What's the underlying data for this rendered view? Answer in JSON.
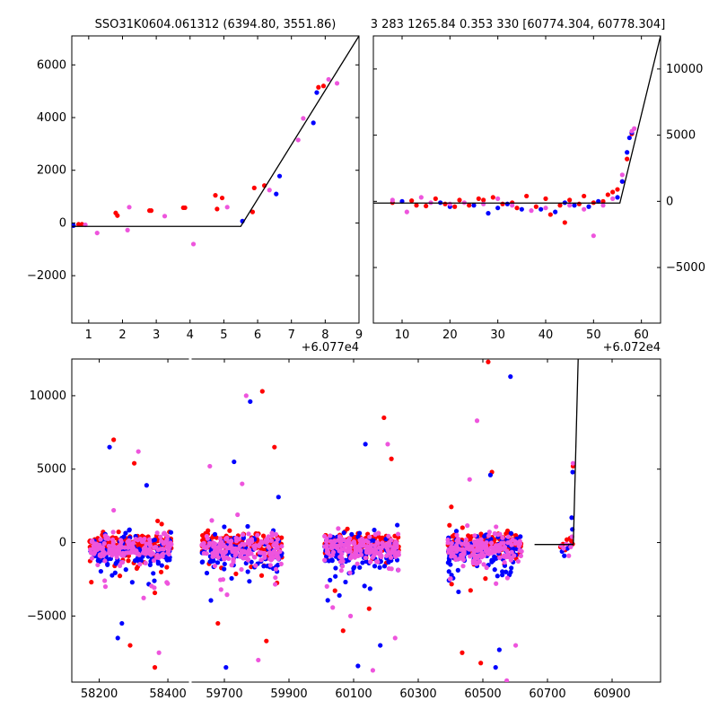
{
  "figure": {
    "title_left": "SSO31K0604.061312 (6394.80, 3551.86)",
    "title_right": "3 283 1265.84 0.353 330 [60774.304, 60778.304]"
  },
  "colors": {
    "series_a": "#ff0000",
    "series_b": "#0000ff",
    "series_c": "#ee55dd",
    "model": "#000000"
  },
  "chart_data": [
    {
      "type": "scatter",
      "panel": "top-left",
      "xlim": [
        0.5,
        9.0
      ],
      "ylim": [
        -3800,
        7100
      ],
      "x_offset_label": "+6.077e4",
      "xticks": [
        1,
        2,
        3,
        4,
        5,
        6,
        7,
        8,
        9
      ],
      "yticks": [
        -2000,
        0,
        2000,
        4000,
        6000
      ],
      "ytick_side": "left",
      "model": {
        "x": [
          0.5,
          5.5,
          9.0
        ],
        "y": [
          -130,
          -130,
          7100
        ]
      },
      "series": [
        {
          "color": "#ff0000",
          "points": [
            [
              0.7,
              -50
            ],
            [
              0.8,
              -50
            ],
            [
              1.8,
              380
            ],
            [
              1.85,
              280
            ],
            [
              2.8,
              470
            ],
            [
              2.85,
              470
            ],
            [
              3.8,
              580
            ],
            [
              3.85,
              580
            ],
            [
              4.75,
              1050
            ],
            [
              4.8,
              530
            ],
            [
              4.95,
              950
            ],
            [
              5.85,
              420
            ],
            [
              5.9,
              1330
            ],
            [
              6.2,
              1420
            ],
            [
              7.8,
              5150
            ],
            [
              7.95,
              5200
            ]
          ]
        },
        {
          "color": "#0000ff",
          "points": [
            [
              0.55,
              -100
            ],
            [
              5.55,
              70
            ],
            [
              6.55,
              1100
            ],
            [
              6.65,
              1780
            ],
            [
              7.65,
              3800
            ],
            [
              7.75,
              4950
            ]
          ]
        },
        {
          "color": "#ee55dd",
          "points": [
            [
              0.9,
              -70
            ],
            [
              1.25,
              -380
            ],
            [
              2.15,
              -270
            ],
            [
              2.2,
              600
            ],
            [
              3.25,
              260
            ],
            [
              4.1,
              -800
            ],
            [
              5.1,
              600
            ],
            [
              6.35,
              1250
            ],
            [
              7.2,
              3150
            ],
            [
              7.35,
              3970
            ],
            [
              8.1,
              5450
            ],
            [
              8.35,
              5300
            ]
          ]
        }
      ]
    },
    {
      "type": "scatter",
      "panel": "top-right",
      "xlim": [
        4,
        64
      ],
      "ylim": [
        -9200,
        12500
      ],
      "x_offset_label": "+6.072e4",
      "xticks": [
        10,
        20,
        30,
        40,
        50,
        60
      ],
      "yticks": [
        -5000,
        0,
        5000,
        10000
      ],
      "ytick_side": "right",
      "model": {
        "x": [
          4,
          55.5,
          64
        ],
        "y": [
          -130,
          -130,
          12500
        ]
      },
      "series": [
        {
          "color": "#ff0000",
          "points": [
            [
              8,
              -100
            ],
            [
              12,
              50
            ],
            [
              13,
              -300
            ],
            [
              15,
              -350
            ],
            [
              17,
              200
            ],
            [
              19,
              -200
            ],
            [
              21,
              -400
            ],
            [
              22,
              100
            ],
            [
              24,
              -300
            ],
            [
              26,
              200
            ],
            [
              27,
              100
            ],
            [
              29,
              300
            ],
            [
              31,
              -200
            ],
            [
              33,
              -100
            ],
            [
              34,
              -500
            ],
            [
              36,
              400
            ],
            [
              38,
              -400
            ],
            [
              40,
              200
            ],
            [
              41,
              -1000
            ],
            [
              43,
              -300
            ],
            [
              44,
              -1600
            ],
            [
              45,
              100
            ],
            [
              47,
              -200
            ],
            [
              48,
              400
            ],
            [
              50,
              -100
            ],
            [
              52,
              0
            ],
            [
              53,
              500
            ],
            [
              54,
              700
            ],
            [
              55,
              900
            ],
            [
              56,
              1500
            ],
            [
              57,
              3200
            ],
            [
              58,
              5100
            ]
          ]
        },
        {
          "color": "#0000ff",
          "points": [
            [
              10,
              0
            ],
            [
              18,
              -100
            ],
            [
              20,
              -400
            ],
            [
              25,
              -300
            ],
            [
              28,
              -900
            ],
            [
              30,
              -500
            ],
            [
              32,
              -200
            ],
            [
              35,
              -600
            ],
            [
              39,
              -600
            ],
            [
              42,
              -800
            ],
            [
              44,
              -100
            ],
            [
              46,
              -300
            ],
            [
              49,
              -400
            ],
            [
              51,
              0
            ],
            [
              55,
              300
            ],
            [
              56,
              1500
            ],
            [
              57,
              3700
            ],
            [
              57.5,
              4800
            ],
            [
              58,
              5200
            ]
          ]
        },
        {
          "color": "#ee55dd",
          "points": [
            [
              8,
              100
            ],
            [
              11,
              -800
            ],
            [
              14,
              300
            ],
            [
              16,
              -100
            ],
            [
              20,
              -200
            ],
            [
              23,
              -100
            ],
            [
              27,
              -200
            ],
            [
              30,
              200
            ],
            [
              33,
              -300
            ],
            [
              37,
              -700
            ],
            [
              40,
              -500
            ],
            [
              45,
              -300
            ],
            [
              48,
              -600
            ],
            [
              50,
              -2600
            ],
            [
              52,
              -300
            ],
            [
              54,
              200
            ],
            [
              56,
              2000
            ],
            [
              58,
              5300
            ],
            [
              58.5,
              5500
            ]
          ]
        }
      ]
    },
    {
      "type": "scatter",
      "panel": "bottom",
      "ylim": [
        -9500,
        12500
      ],
      "yticks": [
        -5000,
        0,
        5000,
        10000
      ],
      "ytick_side": "left",
      "x_segments": [
        {
          "xlim": [
            58120,
            58460
          ],
          "xticks": [
            58200,
            58400
          ]
        },
        {
          "xlim": [
            59600,
            61050
          ],
          "xticks": [
            59700,
            59900,
            60100,
            60300,
            60500,
            60700,
            60900
          ]
        }
      ],
      "model": {
        "x": [
          60660,
          60780,
          60795
        ],
        "y": [
          -130,
          -130,
          12500
        ]
      },
      "clusters": [
        {
          "x_range": [
            58170,
            58410
          ],
          "gen": [
            [
              0.5,
              -7000
            ],
            [
              0.4,
              -5500
            ],
            [
              0.2,
              -3000
            ],
            [
              0.3,
              7000
            ],
            [
              0.25,
              6500
            ],
            [
              0.6,
              6200
            ],
            [
              0.55,
              5400
            ],
            [
              0.7,
              3900
            ],
            [
              0.3,
              2200
            ],
            [
              0.8,
              -8500
            ],
            [
              0.35,
              -6500
            ],
            [
              0.85,
              -7500
            ]
          ]
        },
        {
          "x_range": [
            59630,
            59880
          ],
          "gen": [
            [
              0.2,
              -5500
            ],
            [
              0.3,
              -8500
            ],
            [
              0.7,
              -8000
            ],
            [
              0.75,
              10300
            ],
            [
              0.6,
              9600
            ],
            [
              0.55,
              10000
            ],
            [
              0.9,
              6500
            ],
            [
              0.4,
              5500
            ],
            [
              0.1,
              5200
            ],
            [
              0.8,
              -6700
            ],
            [
              0.95,
              3100
            ],
            [
              0.5,
              4000
            ]
          ]
        },
        {
          "x_range": [
            60010,
            60240
          ],
          "gen": [
            [
              0.8,
              8500
            ],
            [
              0.55,
              6700
            ],
            [
              0.85,
              6700
            ],
            [
              0.9,
              5700
            ],
            [
              0.45,
              -8400
            ],
            [
              0.65,
              -8700
            ],
            [
              0.25,
              -6000
            ],
            [
              0.75,
              -7000
            ],
            [
              0.35,
              -5000
            ],
            [
              0.6,
              -4500
            ],
            [
              0.2,
              -3600
            ],
            [
              0.95,
              -6500
            ]
          ]
        },
        {
          "x_range": [
            60390,
            60620
          ],
          "gen": [
            [
              0.55,
              12300
            ],
            [
              0.85,
              11300
            ],
            [
              0.4,
              8300
            ],
            [
              0.6,
              4800
            ],
            [
              0.58,
              4600
            ],
            [
              0.3,
              4300
            ],
            [
              0.45,
              -8200
            ],
            [
              0.65,
              -8500
            ],
            [
              0.8,
              -9400
            ],
            [
              0.2,
              -7500
            ],
            [
              0.7,
              -7300
            ],
            [
              0.92,
              -7000
            ]
          ]
        }
      ],
      "tail": [
        {
          "color": "#ff0000",
          "points": [
            [
              60740,
              -300
            ],
            [
              60748,
              -100
            ],
            [
              60755,
              -500
            ],
            [
              60760,
              200
            ],
            [
              60765,
              -200
            ],
            [
              60770,
              300
            ],
            [
              60774,
              100
            ],
            [
              60778,
              -100
            ],
            [
              60779,
              5200
            ]
          ]
        },
        {
          "color": "#0000ff",
          "points": [
            [
              60745,
              -600
            ],
            [
              60752,
              -900
            ],
            [
              60762,
              -400
            ],
            [
              60771,
              -200
            ],
            [
              60775,
              1700
            ],
            [
              60777,
              900
            ],
            [
              60778,
              4800
            ]
          ]
        },
        {
          "color": "#ee55dd",
          "points": [
            [
              60742,
              -200
            ],
            [
              60750,
              -400
            ],
            [
              60758,
              -100
            ],
            [
              60766,
              -900
            ],
            [
              60772,
              -300
            ],
            [
              60776,
              400
            ],
            [
              60779,
              5400
            ]
          ]
        }
      ]
    }
  ]
}
